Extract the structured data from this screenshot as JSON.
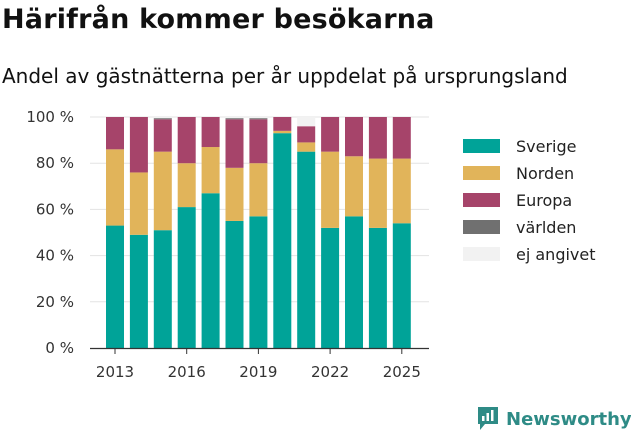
{
  "header": {
    "title": "Härifrån kommer besökarna",
    "subtitle": "Andel av gästnätterna per år uppdelat på ursprungsland"
  },
  "brand": {
    "name": "Newsworthy",
    "icon": "newsworthy-logo-icon"
  },
  "chart_data": {
    "type": "bar",
    "stacked": true,
    "title": "Härifrån kommer besökarna",
    "subtitle": "Andel av gästnätterna per år uppdelat på ursprungsland",
    "xlabel": "",
    "ylabel": "",
    "categories": [
      "2013",
      "2014",
      "2015",
      "2016",
      "2017",
      "2018",
      "2019",
      "2020",
      "2021",
      "2022",
      "2023",
      "2024",
      "2025"
    ],
    "x_tick_labels": [
      "2013",
      "2016",
      "2019",
      "2022",
      "2025"
    ],
    "y_tick_labels": [
      "0 %",
      "20 %",
      "40 %",
      "60 %",
      "80 %",
      "100 %"
    ],
    "ylim": [
      0,
      100
    ],
    "grid": true,
    "legend_position": "right",
    "series": [
      {
        "name": "Sverige",
        "color": "#00a398",
        "values": [
          53,
          49,
          51,
          61,
          67,
          55,
          57,
          93,
          85,
          52,
          57,
          52,
          54
        ]
      },
      {
        "name": "Norden",
        "color": "#e1b45a",
        "values": [
          33,
          27,
          34,
          19,
          20,
          23,
          23,
          1,
          4,
          33,
          26,
          30,
          28
        ]
      },
      {
        "name": "Europa",
        "color": "#a6446a",
        "values": [
          14,
          24,
          14,
          20,
          13,
          21,
          19,
          6,
          7,
          15,
          17,
          18,
          18
        ]
      },
      {
        "name": "världen",
        "color": "#707070",
        "values": [
          0,
          0,
          0.5,
          0,
          0,
          0.5,
          0.5,
          0,
          0,
          0,
          0,
          0,
          0
        ]
      },
      {
        "name": "ej angivet",
        "color": "#f2f2f2",
        "values": [
          0,
          0,
          0.5,
          0,
          0,
          0.5,
          0.5,
          0,
          4,
          0,
          0,
          0,
          0
        ]
      }
    ]
  }
}
